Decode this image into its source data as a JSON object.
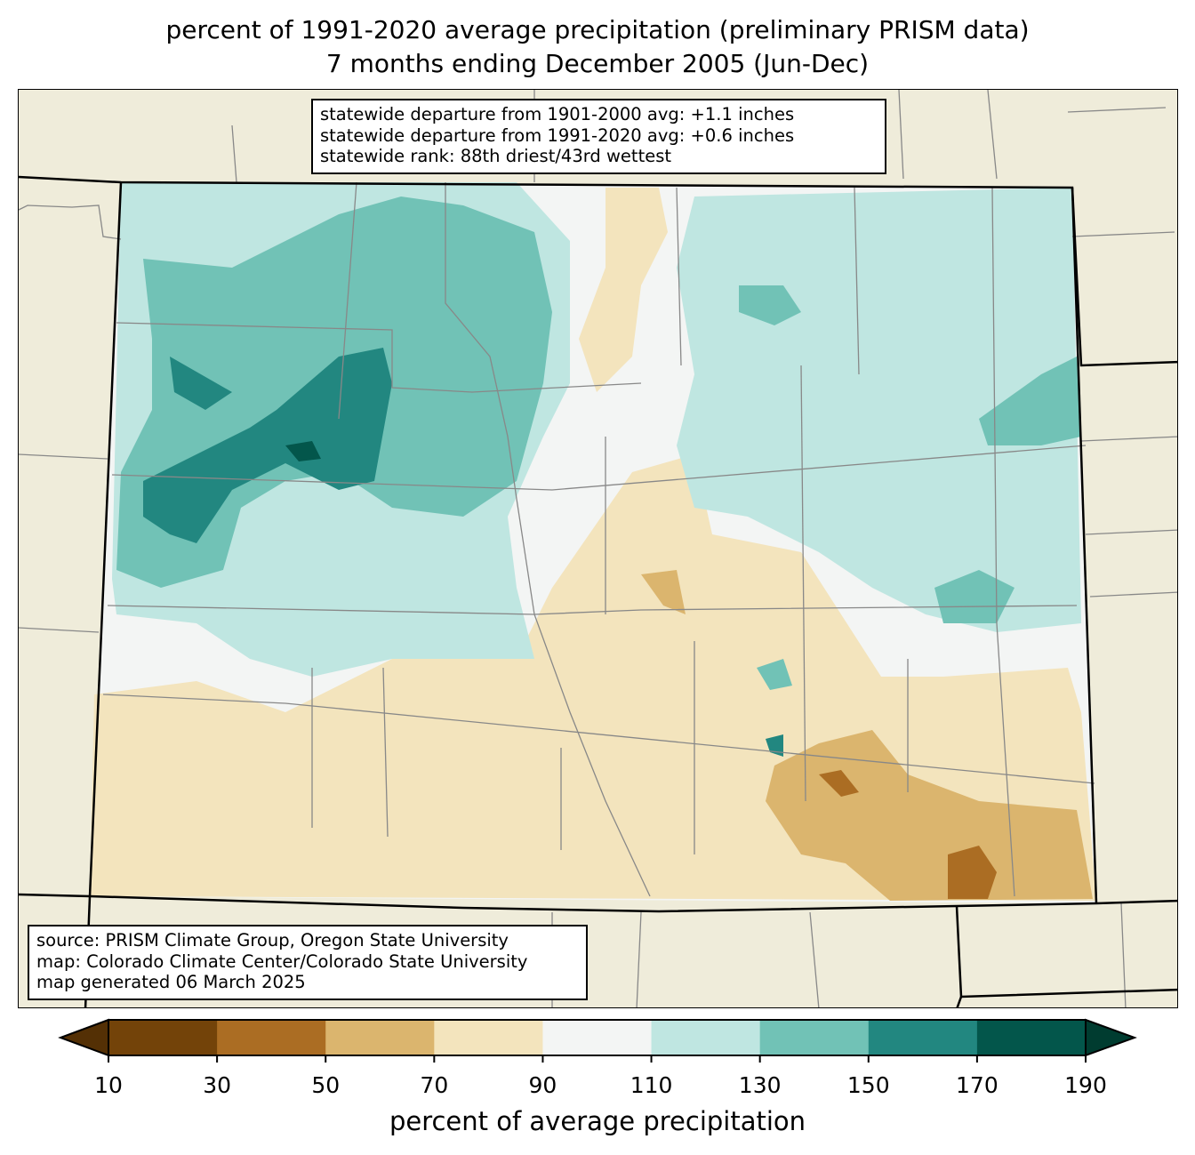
{
  "title": {
    "line1": "percent of 1991-2020 average precipitation (preliminary PRISM data)",
    "line2": "7 months ending December 2005 (Jun-Dec)"
  },
  "stats_box": {
    "line1": "statewide departure from 1901-2000 avg: +1.1 inches",
    "line2": "statewide departure from 1991-2020 avg: +0.6 inches",
    "line3": "statewide rank: 88th driest/43rd wettest"
  },
  "credits_box": {
    "line1": "source: PRISM Climate Group, Oregon State University",
    "line2": "map: Colorado Climate Center/Colorado State University",
    "line3": "map generated 06 March 2025"
  },
  "colorbar": {
    "label": "percent of average precipitation",
    "ticks": [
      "10",
      "30",
      "50",
      "70",
      "90",
      "110",
      "130",
      "150",
      "170",
      "190"
    ],
    "under_color": "#543005",
    "over_color": "#003c30",
    "bins": [
      {
        "range": [
          10,
          30
        ],
        "color": "#734309"
      },
      {
        "range": [
          30,
          50
        ],
        "color": "#ab6d23"
      },
      {
        "range": [
          50,
          70
        ],
        "color": "#dbb56e"
      },
      {
        "range": [
          70,
          90
        ],
        "color": "#f3e4bd"
      },
      {
        "range": [
          90,
          110
        ],
        "color": "#f3f5f4"
      },
      {
        "range": [
          110,
          130
        ],
        "color": "#bfe6e1"
      },
      {
        "range": [
          130,
          150
        ],
        "color": "#71c2b6"
      },
      {
        "range": [
          150,
          170
        ],
        "color": "#228780"
      },
      {
        "range": [
          170,
          190
        ],
        "color": "#03564b"
      }
    ]
  },
  "map_colors": {
    "background_land": "#efecda",
    "county_line": "#888888",
    "state_line": "#000000"
  }
}
